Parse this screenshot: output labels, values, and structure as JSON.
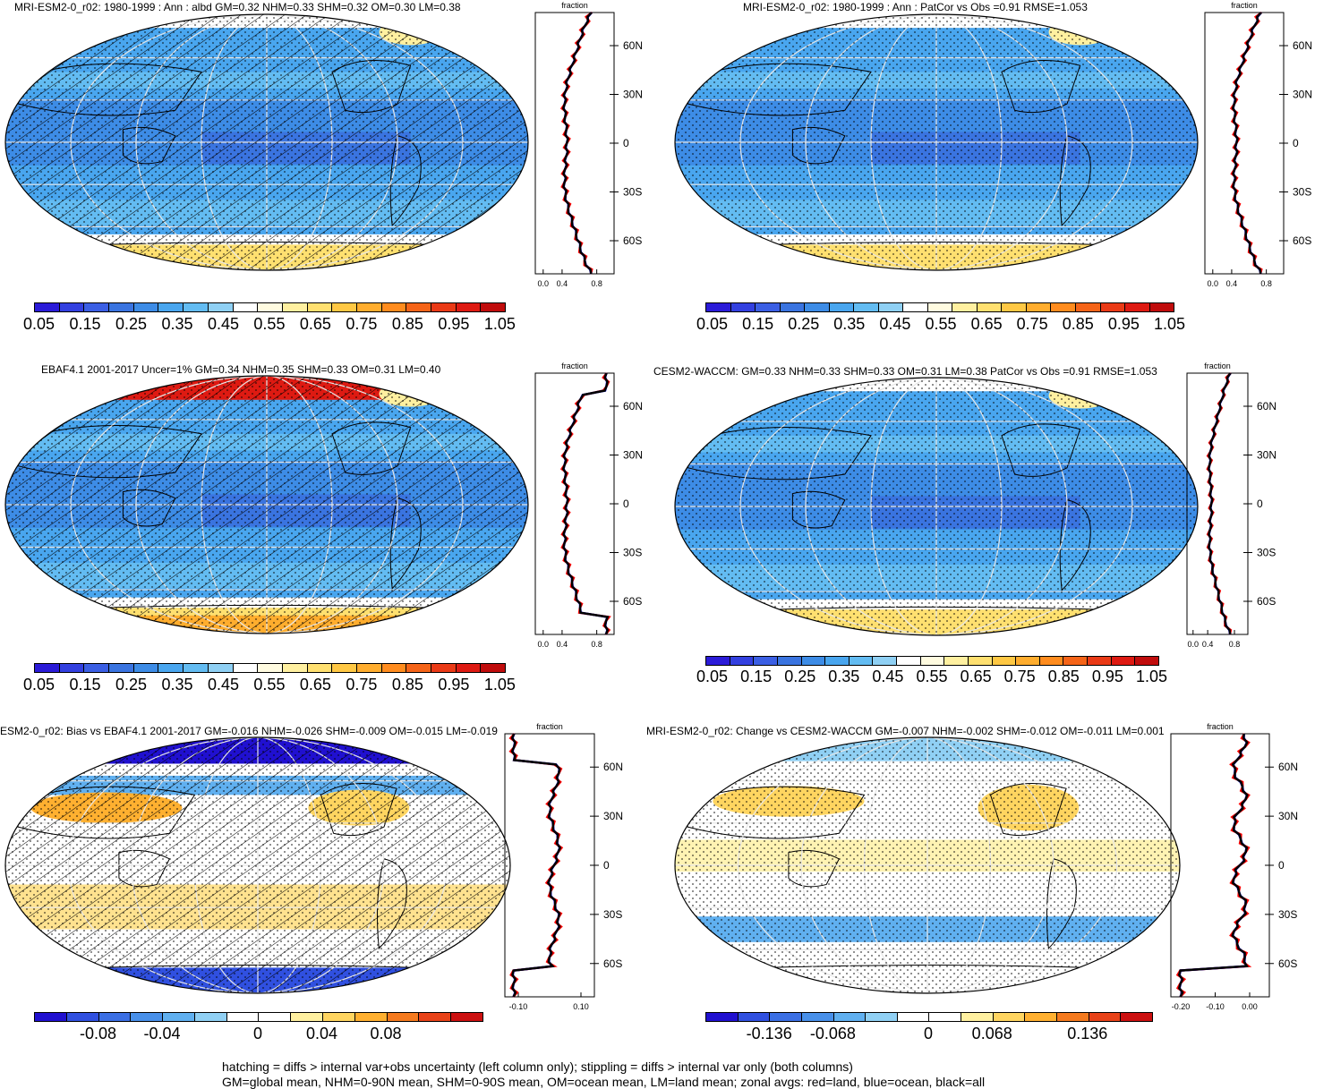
{
  "panels": [
    {
      "title": "MRI-ESM2-0_r02: 1980-1999 : Ann : albd GM=0.32 NHM=0.33 SHM=0.32 OM=0.30 LM=0.38",
      "zonal_axis_label": "fraction",
      "zonal_x_ticks": [
        "0.0",
        "0.4",
        "0.8"
      ],
      "lat_ticks": [
        "60N",
        "30N",
        "0",
        "30S",
        "60S"
      ],
      "colorbar_labels": [
        "0.05",
        "0.15",
        "0.25",
        "0.35",
        "0.45",
        "0.55",
        "0.65",
        "0.75",
        "0.85",
        "0.95",
        "1.05"
      ],
      "overlay": "hatching+stippling"
    },
    {
      "title": "MRI-ESM2-0_r02: 1980-1999 : Ann : PatCor vs Obs =0.91 RMSE=1.053",
      "zonal_axis_label": "fraction",
      "zonal_x_ticks": [
        "0.0",
        "0.4",
        "0.8"
      ],
      "lat_ticks": [
        "60N",
        "30N",
        "0",
        "30S",
        "60S"
      ],
      "colorbar_labels": [
        "0.05",
        "0.15",
        "0.25",
        "0.35",
        "0.45",
        "0.55",
        "0.65",
        "0.75",
        "0.85",
        "0.95",
        "1.05"
      ],
      "overlay": "stippling"
    },
    {
      "title": "EBAF4.1 2001-2017 Uncer=1% GM=0.34 NHM=0.35 SHM=0.33 OM=0.31 LM=0.40",
      "zonal_axis_label": "fraction",
      "zonal_x_ticks": [
        "0.0",
        "0.4",
        "0.8"
      ],
      "lat_ticks": [
        "60N",
        "30N",
        "0",
        "30S",
        "60S"
      ],
      "colorbar_labels": [
        "0.05",
        "0.15",
        "0.25",
        "0.35",
        "0.45",
        "0.55",
        "0.65",
        "0.75",
        "0.85",
        "0.95",
        "1.05"
      ],
      "overlay": "hatching+stippling"
    },
    {
      "title": "CESM2-WACCM: GM=0.33 NHM=0.33 SHM=0.33 OM=0.31 LM=0.38 PatCor vs Obs =0.91 RMSE=1.053",
      "zonal_axis_label": "fraction",
      "zonal_x_ticks": [
        "0.0",
        "0.4",
        "0.8"
      ],
      "lat_ticks": [
        "60N",
        "30N",
        "0",
        "30S",
        "60S"
      ],
      "colorbar_labels": [
        "0.05",
        "0.15",
        "0.25",
        "0.35",
        "0.45",
        "0.55",
        "0.65",
        "0.75",
        "0.85",
        "0.95",
        "1.05"
      ],
      "overlay": "stippling"
    },
    {
      "title": "ESM2-0_r02: Bias vs EBAF4.1 2001-2017 GM=-0.016 NHM=-0.026 SHM=-0.009 OM=-0.015 LM=-0.019",
      "zonal_axis_label": "fraction",
      "zonal_x_ticks": [
        "-0.10",
        "0.10"
      ],
      "lat_ticks": [
        "60N",
        "30N",
        "0",
        "30S",
        "60S"
      ],
      "colorbar_labels": [
        "-0.08",
        "-0.04",
        "0",
        "0.04",
        "0.08"
      ],
      "overlay": "hatching+stippling"
    },
    {
      "title": "MRI-ESM2-0_r02: Change vs CESM2-WACCM GM=-0.007 NHM=-0.002 SHM=-0.012 OM=-0.011 LM=0.001",
      "zonal_axis_label": "fraction",
      "zonal_x_ticks": [
        "-0.20",
        "-0.10",
        "0.00"
      ],
      "lat_ticks": [
        "60N",
        "30N",
        "0",
        "30S",
        "60S"
      ],
      "colorbar_labels": [
        "-0.136",
        "-0.068",
        "0",
        "0.068",
        "0.136"
      ],
      "overlay": "stippling"
    }
  ],
  "footer": {
    "line1": "hatching = diffs > internal var+obs uncertainty (left column only); stippling = diffs > internal var only (both columns)",
    "line2": "GM=global mean, NHM=0-90N mean, SHM=0-90S mean, OM=ocean mean, LM=land mean; zonal avgs: red=land, blue=ocean, black=all"
  },
  "colors": {
    "abs_scale": [
      "#2b1bd8",
      "#3340e0",
      "#3b5fe4",
      "#3a74e0",
      "#3d8ce6",
      "#49a6ef",
      "#63bcf2",
      "#8fd0f4",
      "#ffffff",
      "#fffbe0",
      "#fff0a0",
      "#ffe070",
      "#ffc844",
      "#ffad2e",
      "#ff8c1e",
      "#f56418",
      "#ea3a16",
      "#de1a12",
      "#c00c0c"
    ],
    "diff_scale": [
      "#2010d0",
      "#3050e0",
      "#3b6fe4",
      "#4890ea",
      "#60b0f0",
      "#90d0f4",
      "#ffffff",
      "#ffffff",
      "#fff0a0",
      "#ffd560",
      "#ffb030",
      "#f57a1e",
      "#e84218",
      "#cc1010"
    ],
    "land_line": "#ff0000",
    "ocean_line": "#0000ff",
    "all_line": "#000000"
  }
}
